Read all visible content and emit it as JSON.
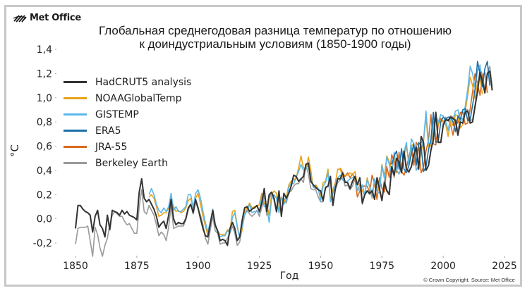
{
  "logo": {
    "text": "Met Office"
  },
  "footer": {
    "copyright": "© Crown Copyright. Source: Met Office"
  },
  "chart_data": {
    "type": "line",
    "title_lines": [
      "Глобальная среднегодовая разница температур по отношению",
      "к доиндустриальным условиям (1850-1900 годы)"
    ],
    "xlabel": "Год",
    "ylabel": "°C",
    "xlim": [
      1850,
      2025
    ],
    "ylim": [
      -0.3,
      1.4
    ],
    "xticks": [
      1850,
      1875,
      1900,
      1925,
      1950,
      1975,
      2000,
      2025
    ],
    "xtick_labels": [
      "1850",
      "1875",
      "1900",
      "1925",
      "1950",
      "1975",
      "2000",
      "2025"
    ],
    "yticks": [
      1.4,
      1.2,
      1.0,
      0.8,
      0.6,
      0.4,
      0.2,
      0.0,
      -0.2
    ],
    "ytick_labels": [
      "1,4",
      "1,2",
      "1,0",
      "0,8",
      "0,6",
      "0,4",
      "0,2",
      "0,0",
      "-0,2"
    ],
    "grid": false,
    "legend_position": "top-left",
    "series": [
      {
        "name": "HadCRUT5 analysis",
        "color": "#333333",
        "start": 1850,
        "values": [
          -0.08,
          0.11,
          0.11,
          0.08,
          0.06,
          0.05,
          0.03,
          -0.11,
          0.02,
          0.07,
          -0.05,
          -0.08,
          -0.15,
          0.03,
          -0.09,
          0.07,
          0.06,
          0.05,
          0.03,
          0.07,
          0.04,
          0.06,
          0.03,
          0.02,
          0.01,
          -0.01,
          0.22,
          0.33,
          0.17,
          0.14,
          0.16,
          0.12,
          0.08,
          0.02,
          -0.07,
          -0.04,
          -0.02,
          -0.08,
          0.03,
          0.16,
          0.0,
          -0.05,
          -0.03,
          -0.04,
          -0.04,
          0.0,
          0.09,
          0.12,
          0.05,
          0.16,
          0.09,
          0.0,
          -0.08,
          -0.14,
          -0.15,
          -0.04,
          0.07,
          -0.05,
          -0.1,
          -0.18,
          -0.17,
          -0.18,
          -0.22,
          -0.08,
          -0.03,
          -0.08,
          -0.18,
          -0.15,
          -0.01,
          0.09,
          0.1,
          0.06,
          0.08,
          0.09,
          0.11,
          0.06,
          0.13,
          0.25,
          0.06,
          0.2,
          0.22,
          0.17,
          0.06,
          0.23,
          0.02,
          0.21,
          0.17,
          0.21,
          0.27,
          0.36,
          0.35,
          0.31,
          0.33,
          0.35,
          0.45,
          0.46,
          0.31,
          0.28,
          0.26,
          0.24,
          0.23,
          0.15,
          0.26,
          0.27,
          0.35,
          0.11,
          0.25,
          0.33,
          0.33,
          0.38,
          0.3,
          0.3,
          0.25,
          0.31,
          0.35,
          0.28,
          0.34,
          0.13,
          0.2,
          0.23,
          0.21,
          0.23,
          0.16,
          0.34,
          0.25,
          0.15,
          0.3,
          0.23,
          0.2,
          0.43,
          0.36,
          0.5,
          0.47,
          0.38,
          0.56,
          0.41,
          0.39,
          0.43,
          0.53,
          0.59,
          0.41,
          0.68,
          0.63,
          0.4,
          0.44,
          0.57,
          0.65,
          0.88,
          0.63,
          0.63,
          0.77,
          0.82,
          0.81,
          0.84,
          0.83,
          0.81,
          0.69,
          0.8,
          0.79,
          0.88,
          0.89,
          0.79,
          0.8,
          0.93,
          1.05,
          1.21,
          1.14,
          1.04,
          1.2,
          1.22,
          1.06
        ]
      },
      {
        "name": "NOAAGlobalTemp",
        "color": "#e8a317",
        "start": 1880,
        "values": [
          0.18,
          0.2,
          0.17,
          0.1,
          0.02,
          0.03,
          0.05,
          0.05,
          0.09,
          0.17,
          0.1,
          0.06,
          0.07,
          0.05,
          0.06,
          0.09,
          0.15,
          0.17,
          0.09,
          0.17,
          0.21,
          0.12,
          0.02,
          -0.06,
          -0.14,
          -0.03,
          0.06,
          -0.06,
          -0.1,
          -0.13,
          -0.13,
          -0.13,
          -0.09,
          -0.1,
          0.06,
          0.07,
          -0.06,
          -0.16,
          -0.09,
          0.05,
          0.09,
          0.13,
          0.09,
          0.1,
          0.1,
          0.12,
          0.21,
          0.12,
          0.12,
          0.03,
          0.2,
          0.23,
          0.21,
          0.05,
          0.18,
          0.13,
          0.18,
          0.28,
          0.31,
          0.32,
          0.34,
          0.42,
          0.52,
          0.42,
          0.41,
          0.51,
          0.4,
          0.26,
          0.28,
          0.25,
          0.18,
          0.3,
          0.31,
          0.41,
          0.16,
          0.24,
          0.3,
          0.41,
          0.41,
          0.35,
          0.36,
          0.36,
          0.38,
          0.36,
          0.39,
          0.28,
          0.29,
          0.23,
          0.19,
          0.34,
          0.26,
          0.17,
          0.33,
          0.26,
          0.24,
          0.45,
          0.35,
          0.52,
          0.47,
          0.39,
          0.52,
          0.4,
          0.37,
          0.44,
          0.52,
          0.6,
          0.46,
          0.6,
          0.62,
          0.4,
          0.44,
          0.55,
          0.64,
          0.84,
          0.6,
          0.6,
          0.76,
          0.81,
          0.78,
          0.81,
          0.81,
          0.78,
          0.68,
          0.81,
          0.77,
          0.86,
          0.85,
          0.75,
          0.78,
          0.89,
          1.02,
          1.17,
          1.1,
          0.99,
          1.13,
          1.16,
          1.03
        ]
      },
      {
        "name": "GISTEMP",
        "color": "#5bb8e8",
        "start": 1880,
        "values": [
          0.2,
          0.25,
          0.2,
          0.12,
          0.07,
          0.05,
          0.09,
          0.06,
          0.1,
          0.21,
          0.07,
          0.1,
          0.06,
          0.06,
          0.08,
          0.1,
          0.2,
          0.2,
          0.09,
          0.21,
          0.24,
          0.17,
          0.06,
          -0.03,
          -0.11,
          -0.02,
          0.08,
          -0.06,
          -0.11,
          -0.15,
          -0.14,
          -0.14,
          -0.1,
          -0.11,
          0.01,
          0.05,
          -0.07,
          -0.16,
          -0.06,
          0.04,
          0.06,
          0.12,
          0.05,
          0.06,
          0.06,
          0.05,
          0.19,
          0.1,
          0.1,
          -0.03,
          0.16,
          0.2,
          0.17,
          0.05,
          0.18,
          0.12,
          0.15,
          0.26,
          0.29,
          0.29,
          0.34,
          0.39,
          0.45,
          0.4,
          0.41,
          0.45,
          0.35,
          0.26,
          0.25,
          0.25,
          0.15,
          0.27,
          0.3,
          0.38,
          0.14,
          0.21,
          0.28,
          0.34,
          0.36,
          0.32,
          0.3,
          0.31,
          0.33,
          0.34,
          0.34,
          0.23,
          0.25,
          0.28,
          0.2,
          0.32,
          0.27,
          0.18,
          0.33,
          0.23,
          0.21,
          0.44,
          0.33,
          0.51,
          0.45,
          0.37,
          0.55,
          0.4,
          0.37,
          0.44,
          0.55,
          0.63,
          0.44,
          0.66,
          0.62,
          0.4,
          0.44,
          0.58,
          0.65,
          0.89,
          0.62,
          0.62,
          0.79,
          0.85,
          0.8,
          0.86,
          0.85,
          0.81,
          0.73,
          0.84,
          0.82,
          0.89,
          0.9,
          0.81,
          0.82,
          0.93,
          1.07,
          1.26,
          1.2,
          1.08,
          1.22,
          1.27,
          1.1
        ]
      },
      {
        "name": "ERA5",
        "color": "#1a6fa8",
        "start": 1979,
        "values": [
          0.45,
          0.52,
          0.56,
          0.41,
          0.58,
          0.41,
          0.38,
          0.44,
          0.53,
          0.62,
          0.44,
          0.63,
          0.6,
          0.39,
          0.43,
          0.57,
          0.66,
          0.88,
          0.63,
          0.64,
          0.8,
          0.84,
          0.82,
          0.84,
          0.84,
          0.8,
          0.72,
          0.85,
          0.82,
          0.9,
          0.91,
          0.81,
          0.82,
          0.94,
          1.07,
          1.3,
          1.2,
          1.09,
          1.24,
          1.3,
          1.1
        ]
      },
      {
        "name": "JRA-55",
        "color": "#d9691a",
        "start": 1958,
        "values": [
          0.42,
          0.38,
          0.35,
          0.38,
          0.34,
          0.37,
          0.33,
          0.18,
          0.23,
          0.27,
          0.27,
          0.27,
          0.22,
          0.36,
          0.29,
          0.16,
          0.34,
          0.25,
          0.22,
          0.43,
          0.34,
          0.53,
          0.47,
          0.38,
          0.55,
          0.39,
          0.36,
          0.42,
          0.51,
          0.6,
          0.44,
          0.63,
          0.6,
          0.38,
          0.43,
          0.56,
          0.65,
          0.86,
          0.62,
          0.61,
          0.78,
          0.83,
          0.8,
          0.81,
          0.82,
          0.78,
          0.69,
          0.82,
          0.79,
          0.88,
          0.88,
          0.78,
          0.79,
          0.91,
          1.05,
          1.2,
          1.11,
          1.02,
          1.18,
          1.21,
          1.04
        ]
      },
      {
        "name": "Berkeley Earth",
        "color": "#999999",
        "start": 1850,
        "values": [
          -0.21,
          -0.08,
          -0.07,
          -0.07,
          -0.07,
          -0.06,
          -0.18,
          -0.31,
          -0.07,
          -0.13,
          -0.24,
          -0.31,
          -0.22,
          -0.16,
          -0.05,
          0.03,
          0.06,
          0.04,
          0.02,
          0.02,
          -0.02,
          -0.05,
          -0.04,
          -0.08,
          -0.12,
          -0.12,
          0.1,
          0.24,
          0.06,
          0.04,
          0.11,
          0.07,
          0.03,
          -0.05,
          -0.14,
          -0.11,
          -0.13,
          -0.18,
          -0.07,
          0.11,
          -0.08,
          -0.07,
          -0.06,
          -0.06,
          -0.06,
          -0.01,
          0.07,
          0.12,
          0.04,
          0.14,
          0.08,
          0.03,
          -0.05,
          -0.16,
          -0.21,
          -0.09,
          0.02,
          -0.1,
          -0.12,
          -0.21,
          -0.2,
          -0.2,
          -0.16,
          -0.12,
          -0.06,
          -0.12,
          -0.22,
          -0.19,
          -0.07,
          0.03,
          0.07,
          0.04,
          0.02,
          0.04,
          0.07,
          0.02,
          0.09,
          0.2,
          0.03,
          0.17,
          0.21,
          0.15,
          0.05,
          0.17,
          0.05,
          0.17,
          0.13,
          0.22,
          0.23,
          0.27,
          0.29,
          0.29,
          0.33,
          0.3,
          0.45,
          0.37,
          0.25,
          0.24,
          0.24,
          0.18,
          0.14,
          0.14,
          0.25,
          0.27,
          0.3,
          0.13,
          0.24,
          0.3,
          0.32,
          0.35,
          0.27,
          0.28,
          0.24,
          0.27,
          0.33,
          0.24,
          0.28,
          0.12,
          0.2,
          0.23,
          0.2,
          0.24,
          0.17,
          0.31,
          0.24,
          0.16,
          0.32,
          0.24,
          0.21,
          0.42,
          0.34,
          0.5,
          0.46,
          0.38,
          0.54,
          0.41,
          0.38,
          0.43,
          0.53,
          0.61,
          0.43,
          0.64,
          0.62,
          0.4,
          0.44,
          0.57,
          0.65,
          0.87,
          0.64,
          0.63,
          0.79,
          0.84,
          0.81,
          0.85,
          0.84,
          0.82,
          0.72,
          0.84,
          0.82,
          0.9,
          0.9,
          0.81,
          0.82,
          0.94,
          1.06,
          1.24,
          1.19,
          1.06,
          1.2,
          1.26,
          1.09
        ]
      }
    ]
  }
}
